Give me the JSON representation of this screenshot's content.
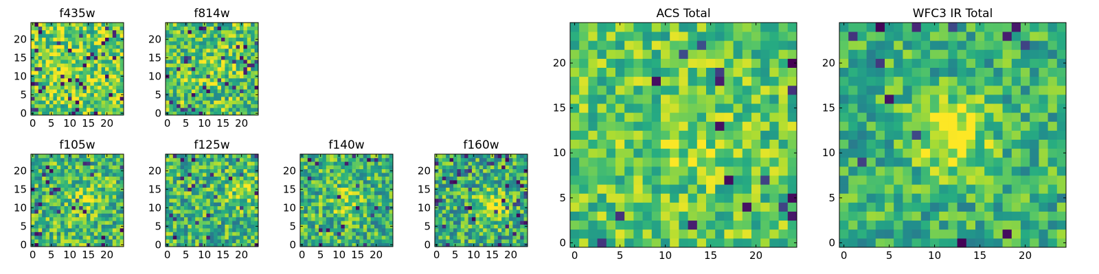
{
  "chart_data": [
    {
      "type": "heatmap",
      "title": "f435w",
      "grid_size": 25,
      "noise": "fine",
      "colormap": "viridis",
      "xticks": [
        0,
        5,
        10,
        15,
        20
      ],
      "yticks": [
        0,
        5,
        10,
        15,
        20
      ],
      "xtick_labels": [
        "0",
        "5",
        "10",
        "15",
        "20"
      ],
      "ytick_labels": [
        "0",
        "5",
        "10",
        "15",
        "20"
      ],
      "seed": 11,
      "mean": 0.78,
      "hot_center": [
        12,
        11
      ],
      "hot_strength": 0.0,
      "dark_fraction": 0.06
    },
    {
      "type": "heatmap",
      "title": "f814w",
      "grid_size": 25,
      "noise": "fine",
      "colormap": "viridis",
      "xticks": [
        0,
        5,
        10,
        15,
        20
      ],
      "yticks": [
        0,
        5,
        10,
        15,
        20
      ],
      "xtick_labels": [
        "0",
        "5",
        "10",
        "15",
        "20"
      ],
      "ytick_labels": [
        "0",
        "5",
        "10",
        "15",
        "20"
      ],
      "seed": 23,
      "mean": 0.72,
      "hot_center": [
        11,
        11
      ],
      "hot_strength": 0.15,
      "dark_fraction": 0.05
    },
    {
      "type": "heatmap",
      "title": "f105w",
      "grid_size": 25,
      "noise": "fine",
      "colormap": "viridis",
      "xticks": [
        0,
        5,
        10,
        15,
        20
      ],
      "yticks": [
        0,
        5,
        10,
        15,
        20
      ],
      "xtick_labels": [
        "0",
        "5",
        "10",
        "15",
        "20"
      ],
      "ytick_labels": [
        "0",
        "5",
        "10",
        "15",
        "20"
      ],
      "seed": 37,
      "mean": 0.68,
      "hot_center": [
        14,
        12
      ],
      "hot_strength": 0.15,
      "dark_fraction": 0.05
    },
    {
      "type": "heatmap",
      "title": "f125w",
      "grid_size": 25,
      "noise": "fine",
      "colormap": "viridis",
      "xticks": [
        0,
        5,
        10,
        15,
        20
      ],
      "yticks": [
        0,
        5,
        10,
        15,
        20
      ],
      "xtick_labels": [
        "0",
        "5",
        "10",
        "15",
        "20"
      ],
      "ytick_labels": [
        "0",
        "5",
        "10",
        "15",
        "20"
      ],
      "seed": 41,
      "mean": 0.66,
      "hot_center": [
        20,
        15
      ],
      "hot_strength": 0.2,
      "dark_fraction": 0.05
    },
    {
      "type": "heatmap",
      "title": "f140w",
      "grid_size": 25,
      "noise": "fine",
      "colormap": "viridis",
      "xticks": [
        0,
        5,
        10,
        15,
        20
      ],
      "yticks": [
        0,
        5,
        10,
        15,
        20
      ],
      "xtick_labels": [
        "0",
        "5",
        "10",
        "15",
        "20"
      ],
      "ytick_labels": [
        "0",
        "5",
        "10",
        "15",
        "20"
      ],
      "seed": 53,
      "mean": 0.66,
      "hot_center": [
        12,
        12
      ],
      "hot_strength": 0.2,
      "dark_fraction": 0.04
    },
    {
      "type": "heatmap",
      "title": "f160w",
      "grid_size": 25,
      "noise": "fine",
      "colormap": "viridis",
      "xticks": [
        0,
        5,
        10,
        15,
        20
      ],
      "yticks": [
        0,
        5,
        10,
        15,
        20
      ],
      "xtick_labels": [
        "0",
        "5",
        "10",
        "15",
        "20"
      ],
      "ytick_labels": [
        "0",
        "5",
        "10",
        "15",
        "20"
      ],
      "seed": 67,
      "mean": 0.64,
      "hot_center": [
        15,
        10
      ],
      "hot_strength": 0.3,
      "dark_fraction": 0.06
    },
    {
      "type": "heatmap",
      "title": "ACS Total",
      "grid_size": 25,
      "noise": "coarse",
      "colormap": "viridis",
      "xticks": [
        0,
        5,
        10,
        15,
        20
      ],
      "yticks": [
        0,
        5,
        10,
        15,
        20
      ],
      "xtick_labels": [
        "0",
        "5",
        "10",
        "15",
        "20"
      ],
      "ytick_labels": [
        "0",
        "5",
        "10",
        "15",
        "20"
      ],
      "seed": 79,
      "mean": 0.74,
      "hot_center": [
        12,
        11
      ],
      "hot_strength": 0.1,
      "dark_fraction": 0.035
    },
    {
      "type": "heatmap",
      "title": "WFC3 IR Total",
      "grid_size": 25,
      "noise": "coarse",
      "colormap": "viridis",
      "xticks": [
        0,
        5,
        10,
        15,
        20
      ],
      "yticks": [
        0,
        5,
        10,
        15,
        20
      ],
      "xtick_labels": [
        "0",
        "5",
        "10",
        "15",
        "20"
      ],
      "ytick_labels": [
        "0",
        "5",
        "10",
        "15",
        "20"
      ],
      "seed": 97,
      "mean": 0.64,
      "hot_center": [
        12,
        12
      ],
      "hot_strength": 0.35,
      "dark_fraction": 0.025
    }
  ]
}
